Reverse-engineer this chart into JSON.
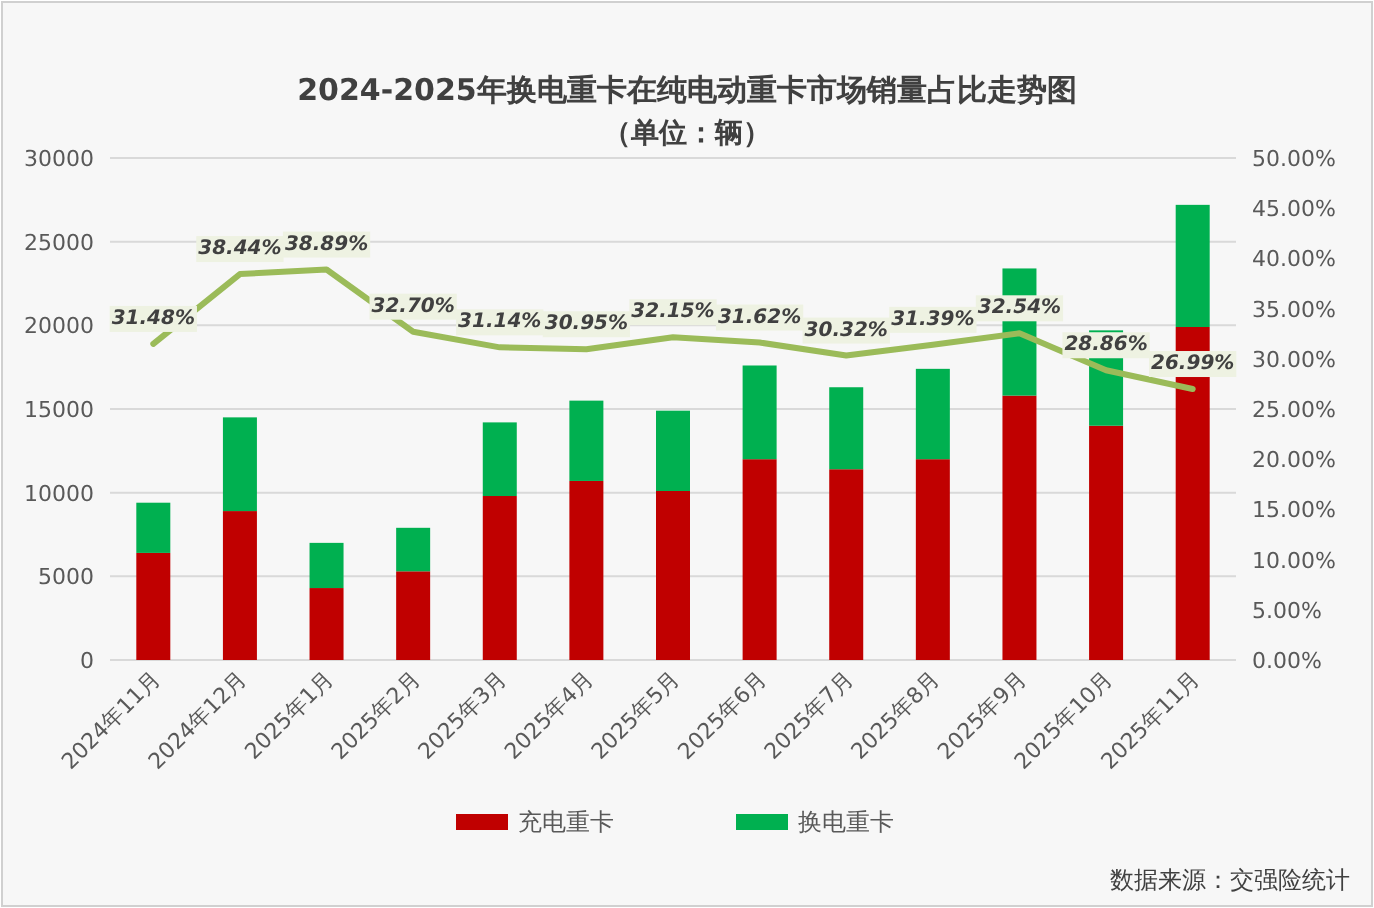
{
  "chart_data": {
    "type": "bar",
    "stacked": true,
    "title": "2024-2025年换电重卡在纯电动重卡市场销量占比走势图",
    "subtitle": "（单位：辆）",
    "categories": [
      "2024年11月",
      "2024年12月",
      "2025年1月",
      "2025年2月",
      "2025年3月",
      "2025年4月",
      "2025年5月",
      "2025年6月",
      "2025年7月",
      "2025年8月",
      "2025年9月",
      "2025年10月",
      "2025年11月"
    ],
    "series": [
      {
        "name": "充电重卡",
        "color": "#c00000",
        "values": [
          6400,
          8900,
          4300,
          5300,
          9800,
          10700,
          10100,
          12000,
          11400,
          12000,
          15800,
          14000,
          19900
        ]
      },
      {
        "name": "换电重卡",
        "color": "#00b050",
        "values": [
          3000,
          5600,
          2700,
          2600,
          4400,
          4800,
          4800,
          5600,
          4900,
          5400,
          7600,
          5700,
          7300
        ]
      },
      {
        "type": "line",
        "axis": "y2",
        "color": "#9bbb59",
        "values": [
          31.48,
          38.44,
          38.89,
          32.7,
          31.14,
          30.95,
          32.15,
          31.62,
          30.32,
          31.39,
          32.54,
          28.86,
          26.99
        ],
        "value_labels": [
          "31.48%",
          "38.44%",
          "38.89%",
          "32.70%",
          "31.14%",
          "30.95%",
          "32.15%",
          "31.62%",
          "30.32%",
          "31.39%",
          "32.54%",
          "28.86%",
          "26.99%"
        ]
      }
    ],
    "ylim": [
      0,
      30000
    ],
    "yticks": [
      0,
      5000,
      10000,
      15000,
      20000,
      25000,
      30000
    ],
    "y2lim": [
      0,
      50
    ],
    "y2ticks": [
      {
        "value": 0,
        "label": "0.00%"
      },
      {
        "value": 5,
        "label": "5.00%"
      },
      {
        "value": 10,
        "label": "10.00%"
      },
      {
        "value": 15,
        "label": "15.00%"
      },
      {
        "value": 20,
        "label": "20.00%"
      },
      {
        "value": 25,
        "label": "25.00%"
      },
      {
        "value": 30,
        "label": "30.00%"
      },
      {
        "value": 35,
        "label": "35.00%"
      },
      {
        "value": 40,
        "label": "40.00%"
      },
      {
        "value": 45,
        "label": "45.00%"
      },
      {
        "value": 50,
        "label": "50.00%"
      }
    ],
    "grid": "y",
    "legend": "bottom",
    "annotations": [
      "数据来源：交强险统计"
    ]
  }
}
